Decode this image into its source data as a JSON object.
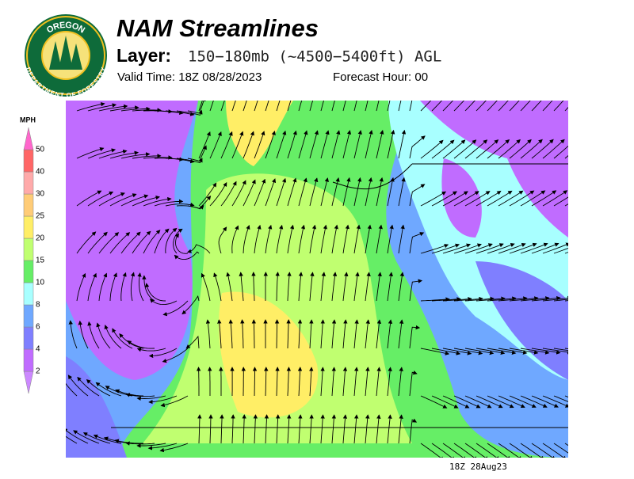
{
  "logo": {
    "top_text": "OREGON",
    "bottom_text": "DEPARTMENT OF FORESTRY"
  },
  "header": {
    "title": "NAM Streamlines",
    "layer_label": "Layer:",
    "layer_value": "150−180mb (~4500−5400ft) AGL",
    "valid_time": "Valid Time: 18Z 08/28/2023",
    "forecast_hour": "Forecast Hour: 00"
  },
  "colorbar": {
    "unit": "MPH",
    "levels": [
      2,
      4,
      6,
      8,
      10,
      15,
      20,
      25,
      30,
      40,
      50
    ],
    "colors": [
      "#c06cff",
      "#7f7fff",
      "#6fa8ff",
      "#a8ffff",
      "#66ee66",
      "#c0ff70",
      "#ffee66",
      "#ffcc77",
      "#ffaaaa",
      "#ff6666",
      "#ff66cc"
    ],
    "under_color": "#cc88ff"
  },
  "footer": {
    "timestamp": "18Z 28Aug23"
  }
}
